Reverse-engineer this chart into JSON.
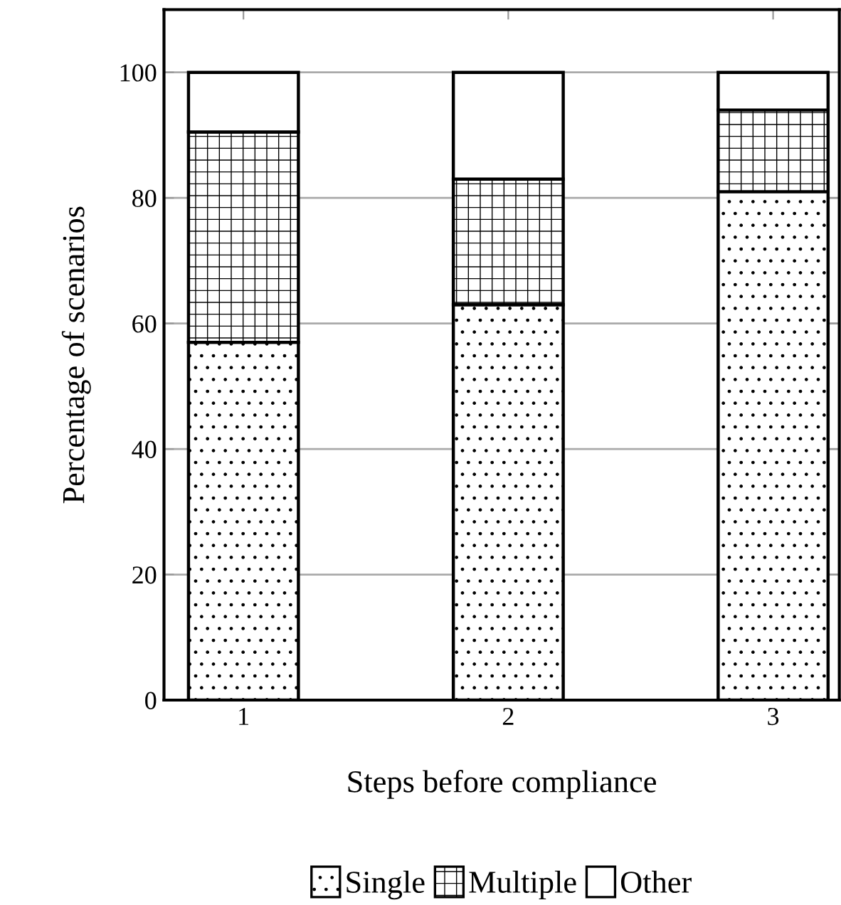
{
  "chart_data": {
    "type": "bar",
    "stacked": true,
    "xlabel": "Steps before compliance",
    "ylabel": "Percentage of scenarios",
    "categories": [
      "1",
      "2",
      "3"
    ],
    "series": [
      {
        "name": "Single",
        "color": "#000000",
        "values": [
          57,
          63,
          81
        ]
      },
      {
        "name": "Multiple",
        "color": "#000000",
        "values": [
          33.5,
          20,
          13
        ]
      },
      {
        "name": "Other",
        "color": "#ffffff",
        "values": [
          9.5,
          17,
          6
        ]
      }
    ],
    "ylim": [
      0,
      110
    ],
    "yticks": [
      0,
      20,
      40,
      60,
      80,
      100
    ],
    "grid": "y",
    "legend": "bottom"
  }
}
